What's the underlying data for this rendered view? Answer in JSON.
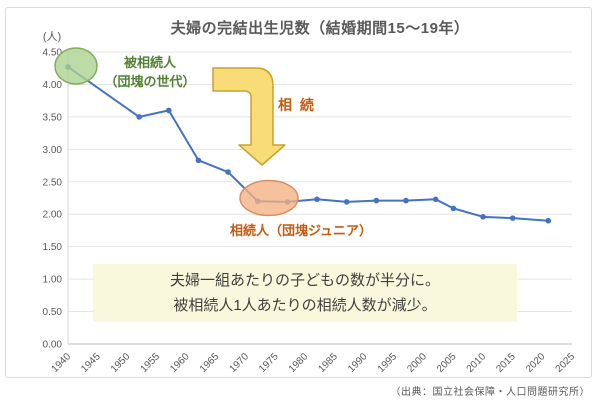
{
  "page": {
    "title": "夫婦の完結出生児数（結婚期間15〜19年）",
    "unit_label": "(人)",
    "source": "（出典：国立社会保障・人口問題研究所）"
  },
  "annotations": {
    "decedent_line1": "被相続人",
    "decedent_line2": "（団塊の世代）",
    "inheritance_label": "相 続",
    "heir_label": "相続人（団塊ジュニア）",
    "callout_line1": "夫婦一組あたりの子どもの数が半分に。",
    "callout_line2": "被相続人1人あたりの相続人数が減少。"
  },
  "chart_data": {
    "type": "line",
    "title": "夫婦の完結出生児数（結婚期間15〜19年）",
    "x": [
      1940,
      1952,
      1957,
      1962,
      1967,
      1972,
      1977,
      1982,
      1987,
      1992,
      1997,
      2002,
      2005,
      2010,
      2015,
      2021
    ],
    "values": [
      4.27,
      3.5,
      3.6,
      2.83,
      2.65,
      2.2,
      2.19,
      2.23,
      2.19,
      2.21,
      2.21,
      2.23,
      2.09,
      1.96,
      1.94,
      1.9
    ],
    "xlabel": "",
    "ylabel": "(人)",
    "xlim": [
      1940,
      2025
    ],
    "ylim": [
      0,
      4.5
    ],
    "x_ticks": [
      1940,
      1945,
      1950,
      1955,
      1960,
      1965,
      1970,
      1975,
      1980,
      1985,
      1990,
      1995,
      2000,
      2005,
      2010,
      2015,
      2020,
      2025
    ],
    "y_ticks": [
      0,
      0.5,
      1,
      1.5,
      2,
      2.5,
      3,
      3.5,
      4,
      4.5
    ],
    "y_tick_labels": [
      "0.00",
      "0.50",
      "1.00",
      "1.50",
      "2.00",
      "2.50",
      "3.00",
      "3.50",
      "4.00",
      "4.50"
    ],
    "grid": true,
    "legend": "none",
    "line_color": "#4472C4",
    "colors": {
      "gridline": "#E4E4E4",
      "x_axis_line": "#BFBFBF",
      "y_axis_line": "#D9D9D9",
      "decedent_ellipse_fill": "#A9D18E",
      "decedent_ellipse_stroke": "#7FAF5E",
      "decedent_text": "#538135",
      "heir_ellipse_fill": "#F4B183",
      "heir_ellipse_stroke": "#D98E62",
      "heir_text": "#C55A11",
      "arrow_fill": "#F7DC77",
      "arrow_stroke": "#C9A22E",
      "callout_bg": "#FAF8DC"
    }
  }
}
